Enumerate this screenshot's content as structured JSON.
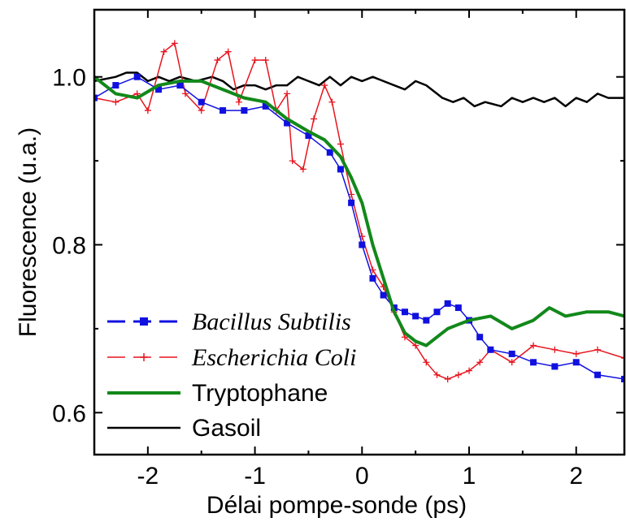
{
  "chart_data": {
    "type": "line",
    "xlabel": "Délai pompe-sonde (ps)",
    "ylabel": "Fluorescence  (u.a.)",
    "xlim": [
      -2.5,
      2.45
    ],
    "ylim": [
      0.55,
      1.08
    ],
    "x_ticks": [
      -2,
      -1,
      0,
      1,
      2
    ],
    "x_tick_labels": [
      "-2",
      "-1",
      "0",
      "1",
      "2"
    ],
    "y_ticks": [
      0.6,
      0.8,
      1.0
    ],
    "y_tick_labels": [
      "0.6",
      "0.8",
      "1.0"
    ],
    "legend_position": "bottom-left",
    "series": [
      {
        "name": "Bacillus Subtilis",
        "color": "#1010e0",
        "style": "dashed-square-markers",
        "x": [
          -2.5,
          -2.3,
          -2.1,
          -1.9,
          -1.7,
          -1.5,
          -1.3,
          -1.1,
          -0.9,
          -0.7,
          -0.5,
          -0.3,
          -0.2,
          -0.1,
          0.0,
          0.1,
          0.2,
          0.3,
          0.4,
          0.5,
          0.6,
          0.7,
          0.8,
          0.9,
          1.0,
          1.1,
          1.2,
          1.4,
          1.6,
          1.8,
          2.0,
          2.2,
          2.45
        ],
        "y": [
          0.975,
          0.99,
          1.0,
          0.985,
          0.99,
          0.97,
          0.96,
          0.96,
          0.965,
          0.945,
          0.93,
          0.91,
          0.89,
          0.85,
          0.8,
          0.76,
          0.74,
          0.725,
          0.72,
          0.715,
          0.71,
          0.72,
          0.73,
          0.725,
          0.71,
          0.69,
          0.675,
          0.67,
          0.66,
          0.655,
          0.66,
          0.645,
          0.64
        ]
      },
      {
        "name": "Escherichia Coli",
        "color": "#e8141e",
        "style": "dashed-plus-markers",
        "x": [
          -2.5,
          -2.3,
          -2.1,
          -2.0,
          -1.85,
          -1.75,
          -1.65,
          -1.5,
          -1.35,
          -1.25,
          -1.15,
          -1.0,
          -0.9,
          -0.8,
          -0.7,
          -0.65,
          -0.55,
          -0.45,
          -0.35,
          -0.28,
          -0.2,
          -0.1,
          0.0,
          0.1,
          0.2,
          0.3,
          0.4,
          0.5,
          0.6,
          0.7,
          0.8,
          0.9,
          1.0,
          1.1,
          1.2,
          1.4,
          1.6,
          1.8,
          2.0,
          2.2,
          2.45
        ],
        "y": [
          0.975,
          0.97,
          0.98,
          0.96,
          1.03,
          1.04,
          0.98,
          0.96,
          1.02,
          1.03,
          0.97,
          1.02,
          1.02,
          0.96,
          0.98,
          0.9,
          0.89,
          0.95,
          0.99,
          0.97,
          0.92,
          0.86,
          0.81,
          0.77,
          0.75,
          0.72,
          0.69,
          0.68,
          0.66,
          0.645,
          0.64,
          0.645,
          0.65,
          0.66,
          0.675,
          0.66,
          0.68,
          0.675,
          0.67,
          0.675,
          0.665
        ]
      },
      {
        "name": "Tryptophane",
        "color": "#12881a",
        "style": "solid-thick",
        "x": [
          -2.5,
          -2.3,
          -2.1,
          -1.9,
          -1.7,
          -1.5,
          -1.3,
          -1.1,
          -0.9,
          -0.7,
          -0.5,
          -0.35,
          -0.2,
          -0.1,
          0.0,
          0.1,
          0.2,
          0.3,
          0.4,
          0.5,
          0.6,
          0.7,
          0.8,
          0.9,
          1.0,
          1.2,
          1.4,
          1.6,
          1.75,
          1.9,
          2.1,
          2.3,
          2.45
        ],
        "y": [
          1.0,
          0.98,
          0.975,
          0.99,
          0.995,
          0.995,
          0.985,
          0.975,
          0.97,
          0.95,
          0.935,
          0.925,
          0.905,
          0.88,
          0.85,
          0.8,
          0.76,
          0.72,
          0.695,
          0.685,
          0.68,
          0.69,
          0.7,
          0.705,
          0.71,
          0.715,
          0.7,
          0.71,
          0.725,
          0.715,
          0.72,
          0.72,
          0.715
        ]
      },
      {
        "name": "Gasoil",
        "color": "#000000",
        "style": "solid",
        "x": [
          -2.5,
          -2.3,
          -2.2,
          -2.1,
          -2.0,
          -1.9,
          -1.8,
          -1.7,
          -1.55,
          -1.4,
          -1.3,
          -1.2,
          -1.1,
          -1.0,
          -0.9,
          -0.8,
          -0.7,
          -0.6,
          -0.5,
          -0.4,
          -0.3,
          -0.2,
          -0.1,
          0.0,
          0.1,
          0.2,
          0.3,
          0.4,
          0.5,
          0.6,
          0.7,
          0.75,
          0.85,
          0.95,
          1.05,
          1.15,
          1.3,
          1.4,
          1.5,
          1.6,
          1.7,
          1.8,
          1.9,
          2.0,
          2.1,
          2.2,
          2.3,
          2.45
        ],
        "y": [
          0.995,
          1.0,
          1.005,
          1.005,
          0.995,
          1.0,
          0.995,
          1.0,
          0.995,
          1.0,
          0.995,
          0.985,
          0.99,
          0.99,
          0.985,
          0.99,
          0.99,
          1.0,
          0.995,
          0.99,
          1.0,
          0.99,
          1.0,
          0.995,
          1.0,
          0.995,
          0.99,
          0.985,
          0.995,
          0.99,
          0.98,
          0.975,
          0.97,
          0.975,
          0.965,
          0.97,
          0.965,
          0.975,
          0.97,
          0.975,
          0.97,
          0.975,
          0.965,
          0.975,
          0.97,
          0.98,
          0.975,
          0.975
        ]
      }
    ]
  }
}
